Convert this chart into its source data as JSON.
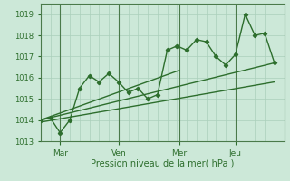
{
  "title": "",
  "xlabel": "Pression niveau de la mer( hPa )",
  "ylabel": "",
  "ylim": [
    1013,
    1019.5
  ],
  "xlim": [
    0,
    100
  ],
  "yticks": [
    1013,
    1014,
    1015,
    1016,
    1017,
    1018,
    1019
  ],
  "day_ticks": [
    8,
    32,
    57,
    80
  ],
  "day_labels": [
    "Mar",
    "Ven",
    "Mer",
    "Jeu"
  ],
  "bg_color": "#cce8d8",
  "grid_color": "#aacfbb",
  "line_color": "#2d6e2d",
  "line_width": 1.0,
  "marker": "D",
  "marker_size": 2.2,
  "main_series_x": [
    0,
    4,
    8,
    12,
    16,
    20,
    24,
    28,
    32,
    36,
    40,
    44,
    48,
    52,
    56,
    60,
    64,
    68,
    72,
    76,
    80,
    84,
    88,
    92,
    96
  ],
  "main_series_y": [
    1014.0,
    1014.1,
    1013.4,
    1014.0,
    1015.5,
    1016.1,
    1015.8,
    1016.2,
    1015.8,
    1015.3,
    1015.5,
    1015.0,
    1015.2,
    1017.3,
    1017.5,
    1017.3,
    1017.8,
    1017.7,
    1017.0,
    1016.6,
    1017.1,
    1019.0,
    1018.0,
    1018.1,
    1016.7
  ],
  "trend1_x": [
    0,
    96
  ],
  "trend1_y": [
    1014.0,
    1016.7
  ],
  "trend2_x": [
    0,
    96
  ],
  "trend2_y": [
    1013.9,
    1015.8
  ],
  "trend3_x": [
    0,
    57
  ],
  "trend3_y": [
    1014.0,
    1016.35
  ]
}
